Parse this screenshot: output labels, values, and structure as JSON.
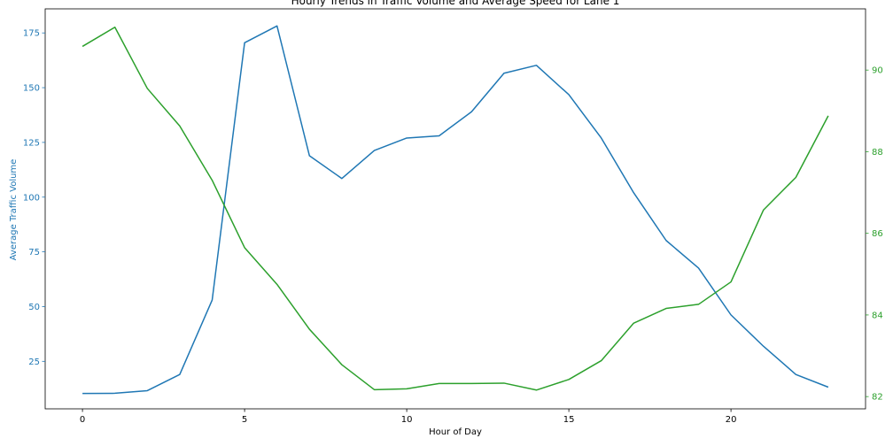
{
  "chart_data": {
    "type": "line",
    "title": "Hourly Trends in Traffic Volume and Average Speed for Lane 1",
    "xlabel": "Hour of Day",
    "ylabel_left": "Average Traffic Volume",
    "ylabel_right": "",
    "xlim": [
      -1.15,
      24.15
    ],
    "ylim_left": [
      3.3,
      186
    ],
    "ylim_right": [
      81.7,
      91.5
    ],
    "x_ticks": [
      0,
      5,
      10,
      15,
      20
    ],
    "y_ticks_left": [
      25,
      50,
      75,
      100,
      125,
      150,
      175
    ],
    "y_ticks_right": [
      82,
      84,
      86,
      88,
      90
    ],
    "grid": false,
    "x": [
      0,
      1,
      2,
      3,
      4,
      5,
      6,
      7,
      8,
      9,
      10,
      11,
      12,
      13,
      14,
      15,
      16,
      17,
      18,
      19,
      20,
      21,
      22,
      23
    ],
    "series": [
      {
        "axis": "left",
        "color": "#1f77b4",
        "values": [
          10.3,
          10.4,
          11.6,
          19.0,
          53.0,
          170.5,
          178.2,
          118.9,
          108.5,
          121.3,
          127.0,
          128.0,
          139.0,
          156.6,
          160.2,
          146.8,
          127.0,
          102.0,
          80.2,
          67.6,
          46.2,
          31.9,
          19.0,
          13.2
        ]
      },
      {
        "axis": "right",
        "color": "#2ca02c",
        "values": [
          90.58,
          91.05,
          89.55,
          88.63,
          87.3,
          85.65,
          84.75,
          83.65,
          82.78,
          82.17,
          82.19,
          82.32,
          82.32,
          82.33,
          82.16,
          82.42,
          82.88,
          83.8,
          84.16,
          84.26,
          84.81,
          86.57,
          87.37,
          88.88
        ]
      }
    ]
  }
}
